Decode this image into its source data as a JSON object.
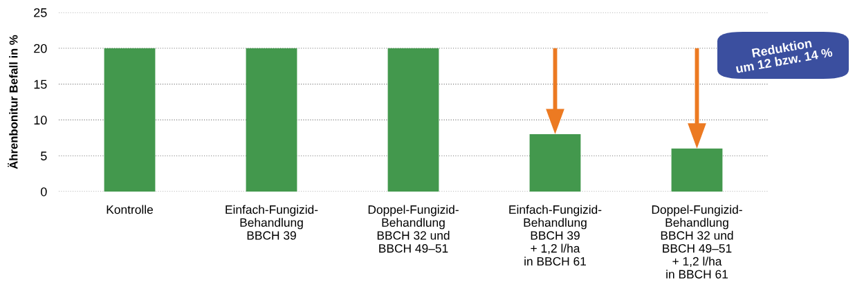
{
  "chart_data": {
    "type": "bar",
    "ylabel": "Ährenbonitur Befall in %",
    "categories": [
      "Kontrolle",
      "Einfach-Fungizid-\nBehandlung\nBBCH 39",
      "Doppel-Fungizid-\nBehandlung\nBBCH 32 und\nBBCH 49–51",
      "Einfach-Fungizid-\nBehandlung\nBBCH 39\n+ 1,2 l/ha\nin BBCH 61",
      "Doppel-Fungizid-\nBehandlung\nBBCH 32 und\nBBCH 49–51\n+ 1,2 l/ha\nin BBCH 61"
    ],
    "values": [
      20,
      20,
      20,
      8,
      6
    ],
    "color": "#43984d",
    "ylim": [
      0,
      25
    ],
    "yticks": [
      0,
      5,
      10,
      15,
      20,
      25
    ],
    "grid": "y",
    "annotations": [
      "Reduktion\num 12 bzw. 14 %"
    ]
  }
}
